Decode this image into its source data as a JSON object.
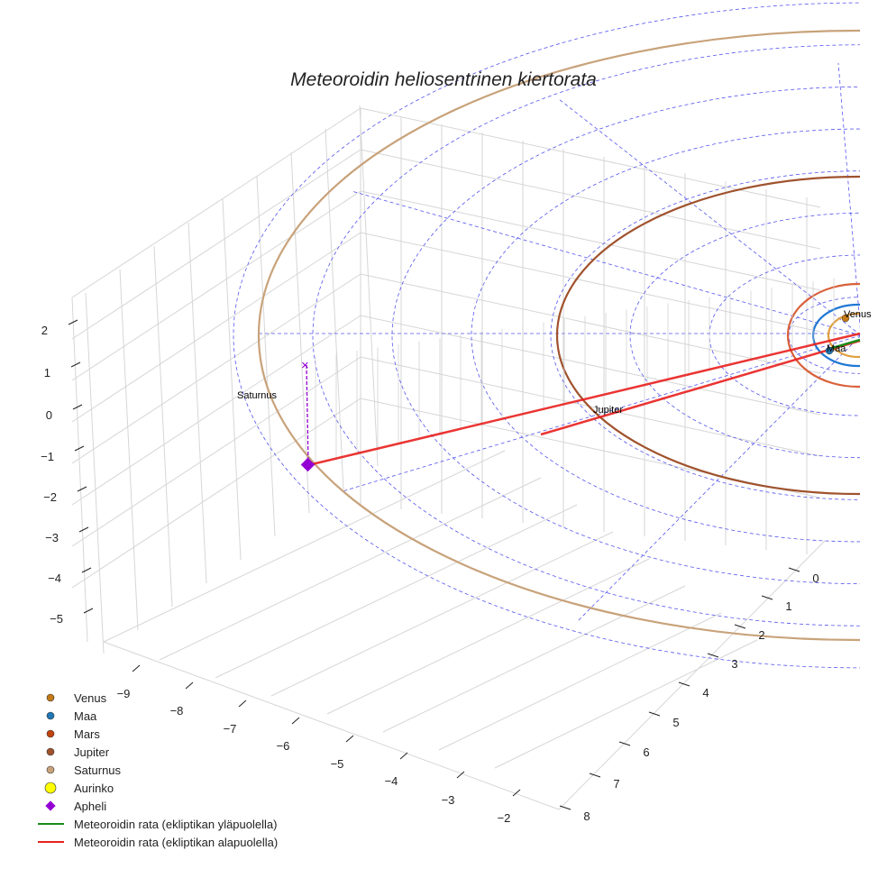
{
  "chart_data": {
    "type": "line",
    "projection": "3d",
    "title": "Meteoroidin heliosentrinen kiertorata",
    "x_ticks": [
      "−9",
      "−8",
      "−7",
      "−6",
      "−5",
      "−4",
      "−3",
      "−2"
    ],
    "y_ticks": [
      "0",
      "1",
      "2",
      "3",
      "4",
      "5",
      "6",
      "7",
      "8"
    ],
    "z_ticks": [
      "2",
      "1",
      "0",
      "−1",
      "−2",
      "−3",
      "−4",
      "−5"
    ],
    "xlim": [
      -9.5,
      -1.5
    ],
    "ylim": [
      -0.5,
      8.5
    ],
    "zlim": [
      -5.5,
      2.5
    ],
    "point_labels": [
      "Venus",
      "Maa",
      "Jupiter",
      "Saturnus"
    ],
    "orbits_au": {
      "Venus": 0.72,
      "Maa": 1.0,
      "Mars": 1.52,
      "Jupiter": 5.2,
      "Saturnus": 9.5
    },
    "legend": {
      "placement": "lower-left",
      "entries": [
        {
          "label": "Venus",
          "color": "#c47a16",
          "marker": "circle"
        },
        {
          "label": "Maa",
          "color": "#1f77b4",
          "marker": "circle"
        },
        {
          "label": "Mars",
          "color": "#c1440e",
          "marker": "circle"
        },
        {
          "label": "Jupiter",
          "color": "#a0522d",
          "marker": "circle"
        },
        {
          "label": "Saturnus",
          "color": "#c8a27a",
          "marker": "circle"
        },
        {
          "label": "Aurinko",
          "color": "#ffff00",
          "marker": "circle-large"
        },
        {
          "label": "Apheli",
          "color": "#9400d3",
          "marker": "diamond"
        },
        {
          "label": "Meteoroidin rata (ekliptikan yläpuolella)",
          "color": "#1a8a1a",
          "marker": "line"
        },
        {
          "label": "Meteoroidin rata (ekliptikan alapuolella)",
          "color": "#e8201e",
          "marker": "line"
        }
      ]
    }
  }
}
